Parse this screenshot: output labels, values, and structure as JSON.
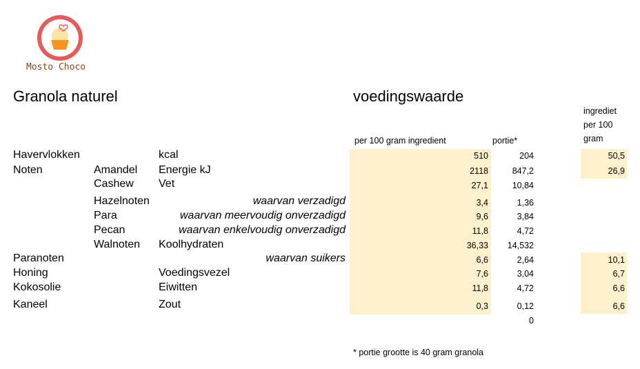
{
  "brand": {
    "name": "Mosto Choco"
  },
  "recipe": {
    "title": "Granola naturel"
  },
  "nutrition": {
    "title": "voedingswaarde",
    "col_per100": "per 100 gram ingredient",
    "col_portie": "portie*",
    "col_ingredient": [
      "ingrediet",
      "per 100",
      "gram"
    ],
    "rows": [
      {
        "label": "kcal",
        "per100": "510",
        "portie": "204"
      },
      {
        "label": "Energie kJ",
        "per100": "2118",
        "portie": "847,2"
      },
      {
        "label": "Vet",
        "per100": "27,1",
        "portie": "10,84"
      },
      {
        "label": "waarvan verzadigd",
        "per100": "3,4",
        "portie": "1,36"
      },
      {
        "label": "waarvan meervoudig onverzadigd",
        "per100": "9,6",
        "portie": "3,84"
      },
      {
        "label": "waarvan enkelvoudig onverzadigd",
        "per100": "11,8",
        "portie": "4,72"
      },
      {
        "label": "Koolhydraten",
        "per100": "36,33",
        "portie": "14,532"
      },
      {
        "label": "waarvan suikers",
        "per100": "6,6",
        "portie": "2,64"
      },
      {
        "label": "Voedingsvezel",
        "per100": "7,6",
        "portie": "3,04"
      },
      {
        "label": "Eiwitten",
        "per100": "11,8",
        "portie": "4,72"
      },
      {
        "label": "Zout",
        "per100": "0,3",
        "portie": "0,12"
      }
    ],
    "extra_portie": "0",
    "footnote": "* portie grootte is 40 gram granola"
  },
  "ingredients": {
    "main": [
      "Havervlokken",
      "Noten",
      "Paranoten",
      "Honing",
      "Kokosolie",
      "Kaneel"
    ],
    "nuts": [
      "Amandel",
      "Cashew",
      "Hazelnoten",
      "Para",
      "Pecan",
      "Walnoten"
    ],
    "amounts": [
      "50,5",
      "26,9",
      "10,1",
      "6,7",
      "6,6",
      "6,6"
    ]
  },
  "colors": {
    "highlight": "#fdf0cc",
    "logo_ring": "#e85a5a",
    "logo_cup": "#f7941d"
  }
}
